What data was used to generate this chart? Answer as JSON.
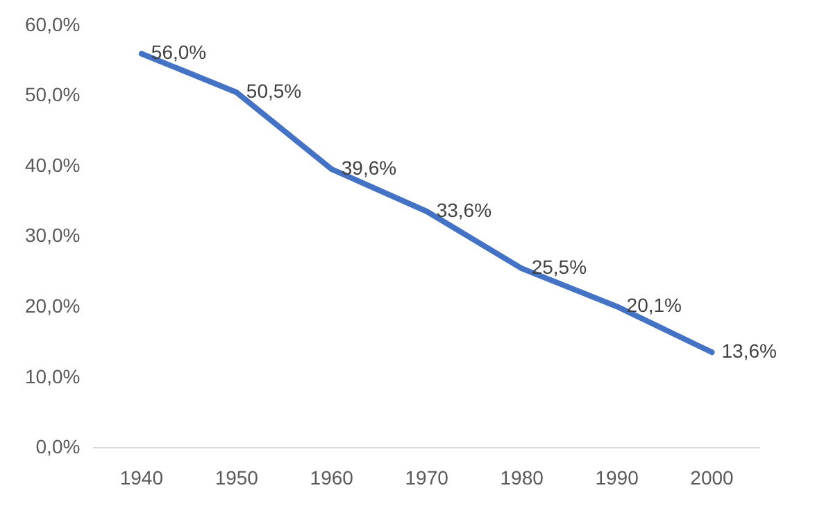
{
  "chart_data": {
    "type": "line",
    "categories": [
      "1940",
      "1950",
      "1960",
      "1970",
      "1980",
      "1990",
      "2000"
    ],
    "series": [
      {
        "color": "#4472c4",
        "values": [
          56.0,
          50.5,
          39.6,
          33.6,
          25.5,
          20.1,
          13.6
        ],
        "value_labels": [
          "56,0%",
          "50,5%",
          "39,6%",
          "33,6%",
          "25,5%",
          "20,1%",
          "13,6%"
        ]
      }
    ],
    "ylim": [
      0,
      60
    ],
    "yticks": [
      {
        "value": 0,
        "label": "0,0%"
      },
      {
        "value": 10,
        "label": "10,0%"
      },
      {
        "value": 20,
        "label": "20,0%"
      },
      {
        "value": 30,
        "label": "30,0%"
      },
      {
        "value": 40,
        "label": "40,0%"
      },
      {
        "value": 50,
        "label": "50,0%"
      },
      {
        "value": 60,
        "label": "60,0%"
      }
    ],
    "legend": false,
    "marker": "none",
    "line_style": "solid"
  }
}
